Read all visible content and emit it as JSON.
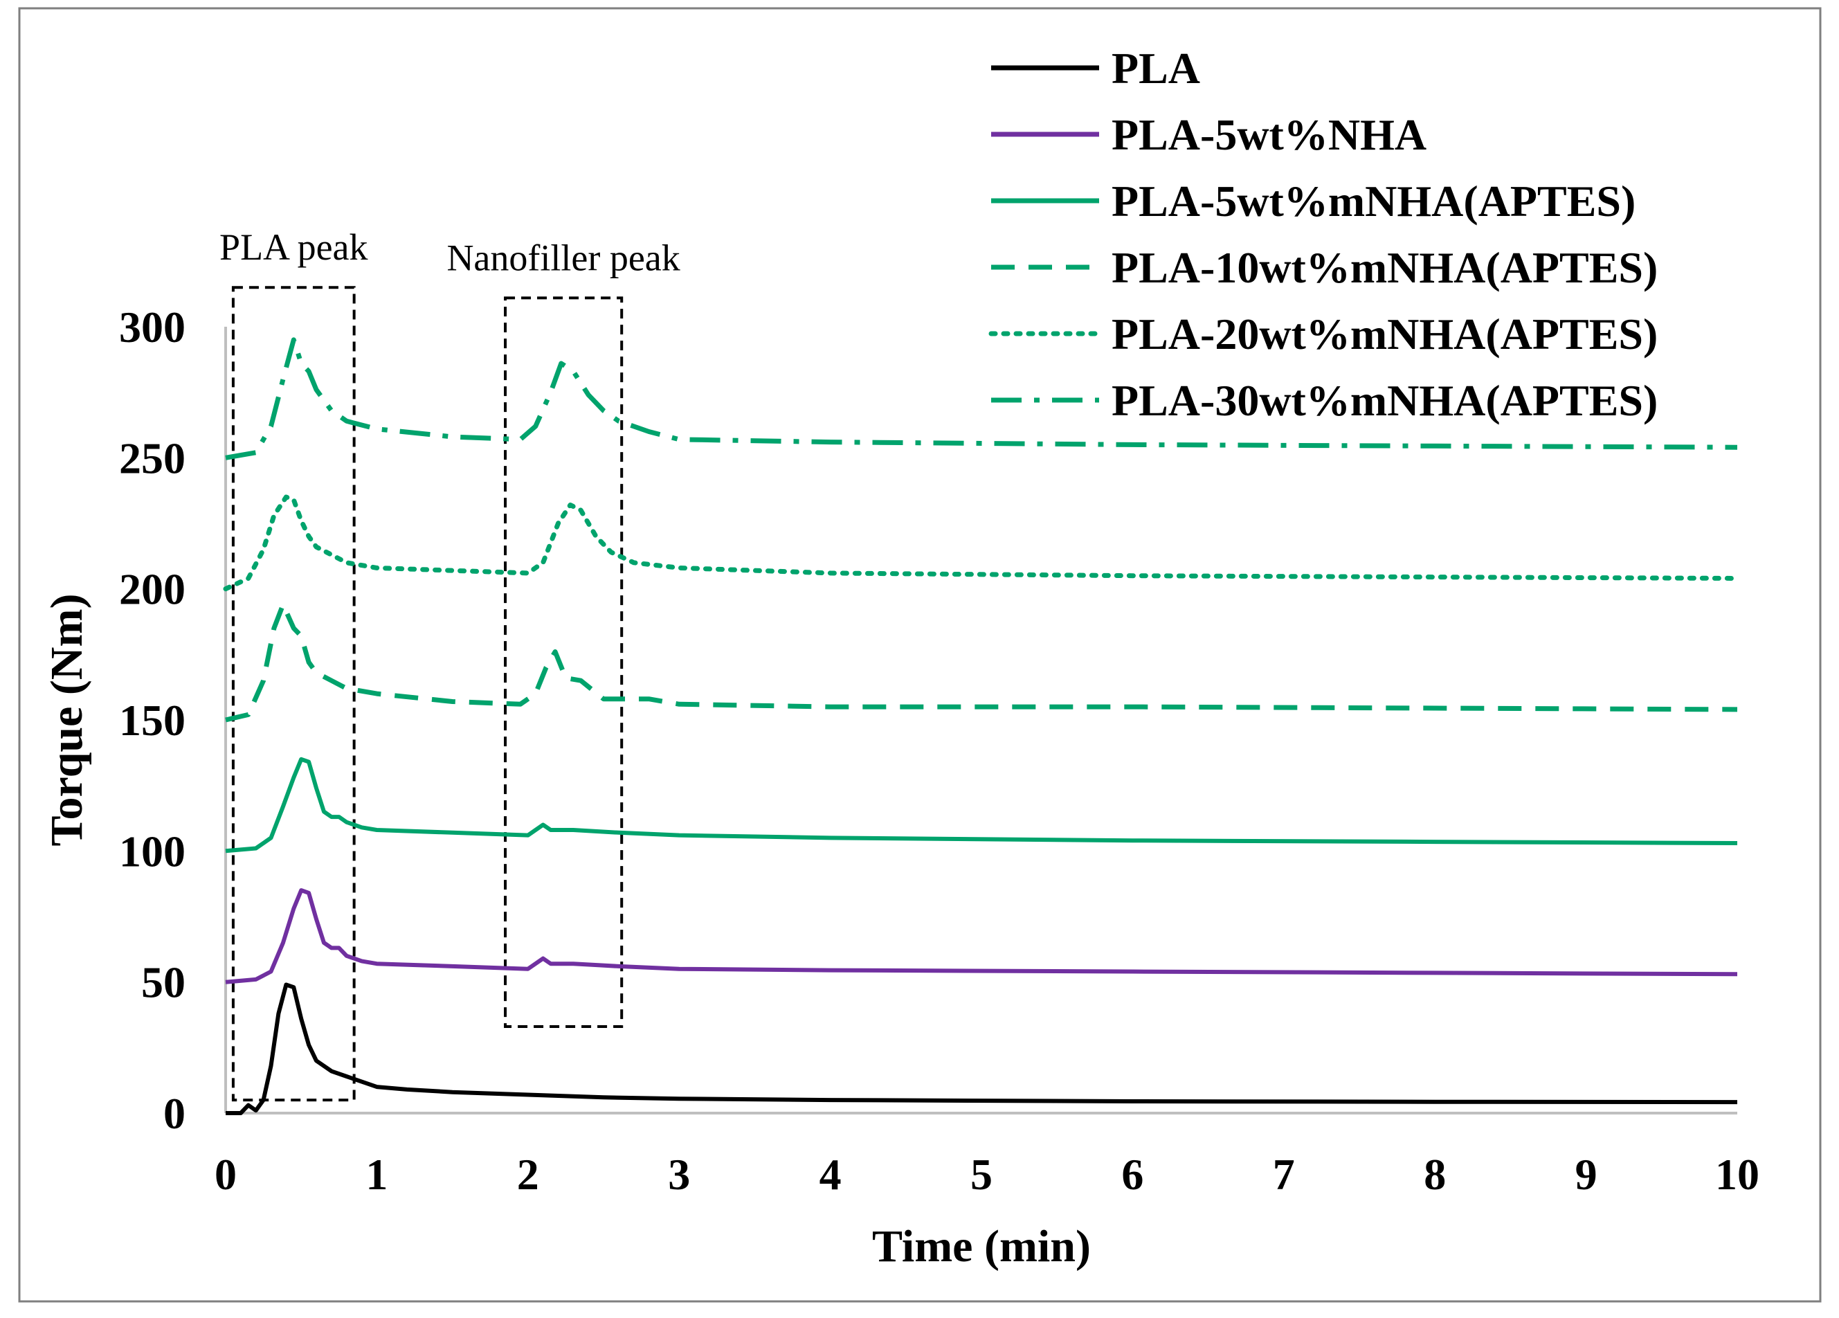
{
  "chart_data": {
    "type": "line",
    "title": "",
    "xlabel": "Time (min)",
    "ylabel": "Torque (Nm)",
    "xlim": [
      0,
      10
    ],
    "ylim": [
      0,
      300
    ],
    "xticks": [
      "0",
      "1",
      "2",
      "3",
      "4",
      "5",
      "6",
      "7",
      "8",
      "9",
      "10"
    ],
    "yticks": [
      "0",
      "50",
      "100",
      "150",
      "200",
      "250",
      "300"
    ],
    "grid": false,
    "legend_position": "top-right",
    "annotations": [
      {
        "label": "PLA peak",
        "x_range": [
          0.05,
          0.85
        ],
        "y_range": [
          5,
          315
        ]
      },
      {
        "label": "Nanofiller peak",
        "x_range": [
          1.85,
          2.62
        ],
        "y_range": [
          33,
          311
        ]
      }
    ],
    "series": [
      {
        "name": "PLA",
        "color": "#000000",
        "style": "solid",
        "points": [
          [
            0,
            0
          ],
          [
            0.1,
            0
          ],
          [
            0.15,
            3
          ],
          [
            0.2,
            1
          ],
          [
            0.25,
            5
          ],
          [
            0.3,
            18
          ],
          [
            0.35,
            38
          ],
          [
            0.4,
            49
          ],
          [
            0.45,
            48
          ],
          [
            0.5,
            36
          ],
          [
            0.55,
            26
          ],
          [
            0.6,
            20
          ],
          [
            0.7,
            16
          ],
          [
            0.8,
            14
          ],
          [
            0.9,
            12
          ],
          [
            1.0,
            10
          ],
          [
            1.2,
            9
          ],
          [
            1.5,
            8
          ],
          [
            2.0,
            7
          ],
          [
            2.5,
            6
          ],
          [
            3,
            5.5
          ],
          [
            4,
            5
          ],
          [
            6,
            4.5
          ],
          [
            8,
            4.3
          ],
          [
            10,
            4.2
          ]
        ]
      },
      {
        "name": "PLA-5wt%NHA",
        "color": "#7030A0",
        "style": "solid",
        "points": [
          [
            0,
            50
          ],
          [
            0.2,
            51
          ],
          [
            0.3,
            54
          ],
          [
            0.38,
            65
          ],
          [
            0.45,
            78
          ],
          [
            0.5,
            85
          ],
          [
            0.55,
            84
          ],
          [
            0.6,
            74
          ],
          [
            0.65,
            65
          ],
          [
            0.7,
            63
          ],
          [
            0.75,
            63
          ],
          [
            0.8,
            60
          ],
          [
            0.9,
            58
          ],
          [
            1.0,
            57
          ],
          [
            1.5,
            56
          ],
          [
            2.0,
            55
          ],
          [
            2.1,
            59
          ],
          [
            2.15,
            57
          ],
          [
            2.3,
            57
          ],
          [
            2.6,
            56
          ],
          [
            3,
            55
          ],
          [
            4,
            54.5
          ],
          [
            6,
            54
          ],
          [
            8,
            53.5
          ],
          [
            10,
            53
          ]
        ]
      },
      {
        "name": "PLA-5wt%mNHA(APTES)",
        "color": "#00A36C",
        "style": "solid",
        "points": [
          [
            0,
            100
          ],
          [
            0.2,
            101
          ],
          [
            0.3,
            105
          ],
          [
            0.38,
            117
          ],
          [
            0.45,
            128
          ],
          [
            0.5,
            135
          ],
          [
            0.55,
            134
          ],
          [
            0.6,
            124
          ],
          [
            0.65,
            115
          ],
          [
            0.7,
            113
          ],
          [
            0.75,
            113
          ],
          [
            0.8,
            111
          ],
          [
            0.9,
            109
          ],
          [
            1.0,
            108
          ],
          [
            1.5,
            107
          ],
          [
            2.0,
            106
          ],
          [
            2.1,
            110
          ],
          [
            2.15,
            108
          ],
          [
            2.3,
            108
          ],
          [
            2.6,
            107
          ],
          [
            3,
            106
          ],
          [
            4,
            105
          ],
          [
            6,
            104
          ],
          [
            8,
            103.5
          ],
          [
            10,
            103
          ]
        ]
      },
      {
        "name": "PLA-10wt%mNHA(APTES)",
        "color": "#00A36C",
        "style": "dash",
        "points": [
          [
            0,
            150
          ],
          [
            0.15,
            152
          ],
          [
            0.25,
            165
          ],
          [
            0.32,
            185
          ],
          [
            0.38,
            194
          ],
          [
            0.45,
            185
          ],
          [
            0.5,
            182
          ],
          [
            0.55,
            172
          ],
          [
            0.6,
            168
          ],
          [
            0.7,
            165
          ],
          [
            0.8,
            162
          ],
          [
            1.0,
            160
          ],
          [
            1.5,
            157
          ],
          [
            1.95,
            156
          ],
          [
            2.05,
            160
          ],
          [
            2.12,
            170
          ],
          [
            2.18,
            176
          ],
          [
            2.25,
            166
          ],
          [
            2.35,
            165
          ],
          [
            2.5,
            158
          ],
          [
            2.8,
            158
          ],
          [
            3,
            156
          ],
          [
            4,
            155
          ],
          [
            6,
            155
          ],
          [
            8,
            154.5
          ],
          [
            10,
            154
          ]
        ]
      },
      {
        "name": "PLA-20wt%mNHA(APTES)",
        "color": "#00A36C",
        "style": "dot",
        "points": [
          [
            0,
            200
          ],
          [
            0.15,
            204
          ],
          [
            0.25,
            215
          ],
          [
            0.32,
            228
          ],
          [
            0.4,
            235
          ],
          [
            0.45,
            234
          ],
          [
            0.5,
            226
          ],
          [
            0.55,
            220
          ],
          [
            0.6,
            216
          ],
          [
            0.7,
            213
          ],
          [
            0.8,
            210
          ],
          [
            1.0,
            208
          ],
          [
            1.5,
            207
          ],
          [
            2.0,
            206
          ],
          [
            2.1,
            210
          ],
          [
            2.2,
            225
          ],
          [
            2.28,
            232
          ],
          [
            2.35,
            230
          ],
          [
            2.45,
            220
          ],
          [
            2.55,
            214
          ],
          [
            2.7,
            210
          ],
          [
            3,
            208
          ],
          [
            4,
            206
          ],
          [
            6,
            205
          ],
          [
            8,
            204.5
          ],
          [
            10,
            204
          ]
        ]
      },
      {
        "name": "PLA-30wt%mNHA(APTES)",
        "color": "#00A36C",
        "style": "dashdot",
        "points": [
          [
            0,
            250
          ],
          [
            0.2,
            252
          ],
          [
            0.3,
            262
          ],
          [
            0.38,
            280
          ],
          [
            0.45,
            295
          ],
          [
            0.5,
            286
          ],
          [
            0.55,
            283
          ],
          [
            0.6,
            276
          ],
          [
            0.7,
            268
          ],
          [
            0.8,
            264
          ],
          [
            1.0,
            261
          ],
          [
            1.5,
            258
          ],
          [
            1.95,
            257
          ],
          [
            2.05,
            262
          ],
          [
            2.15,
            275
          ],
          [
            2.22,
            286
          ],
          [
            2.3,
            283
          ],
          [
            2.4,
            274
          ],
          [
            2.5,
            268
          ],
          [
            2.6,
            264
          ],
          [
            2.8,
            260
          ],
          [
            3,
            257
          ],
          [
            4,
            256
          ],
          [
            6,
            255
          ],
          [
            8,
            254.5
          ],
          [
            10,
            254
          ]
        ]
      }
    ]
  }
}
